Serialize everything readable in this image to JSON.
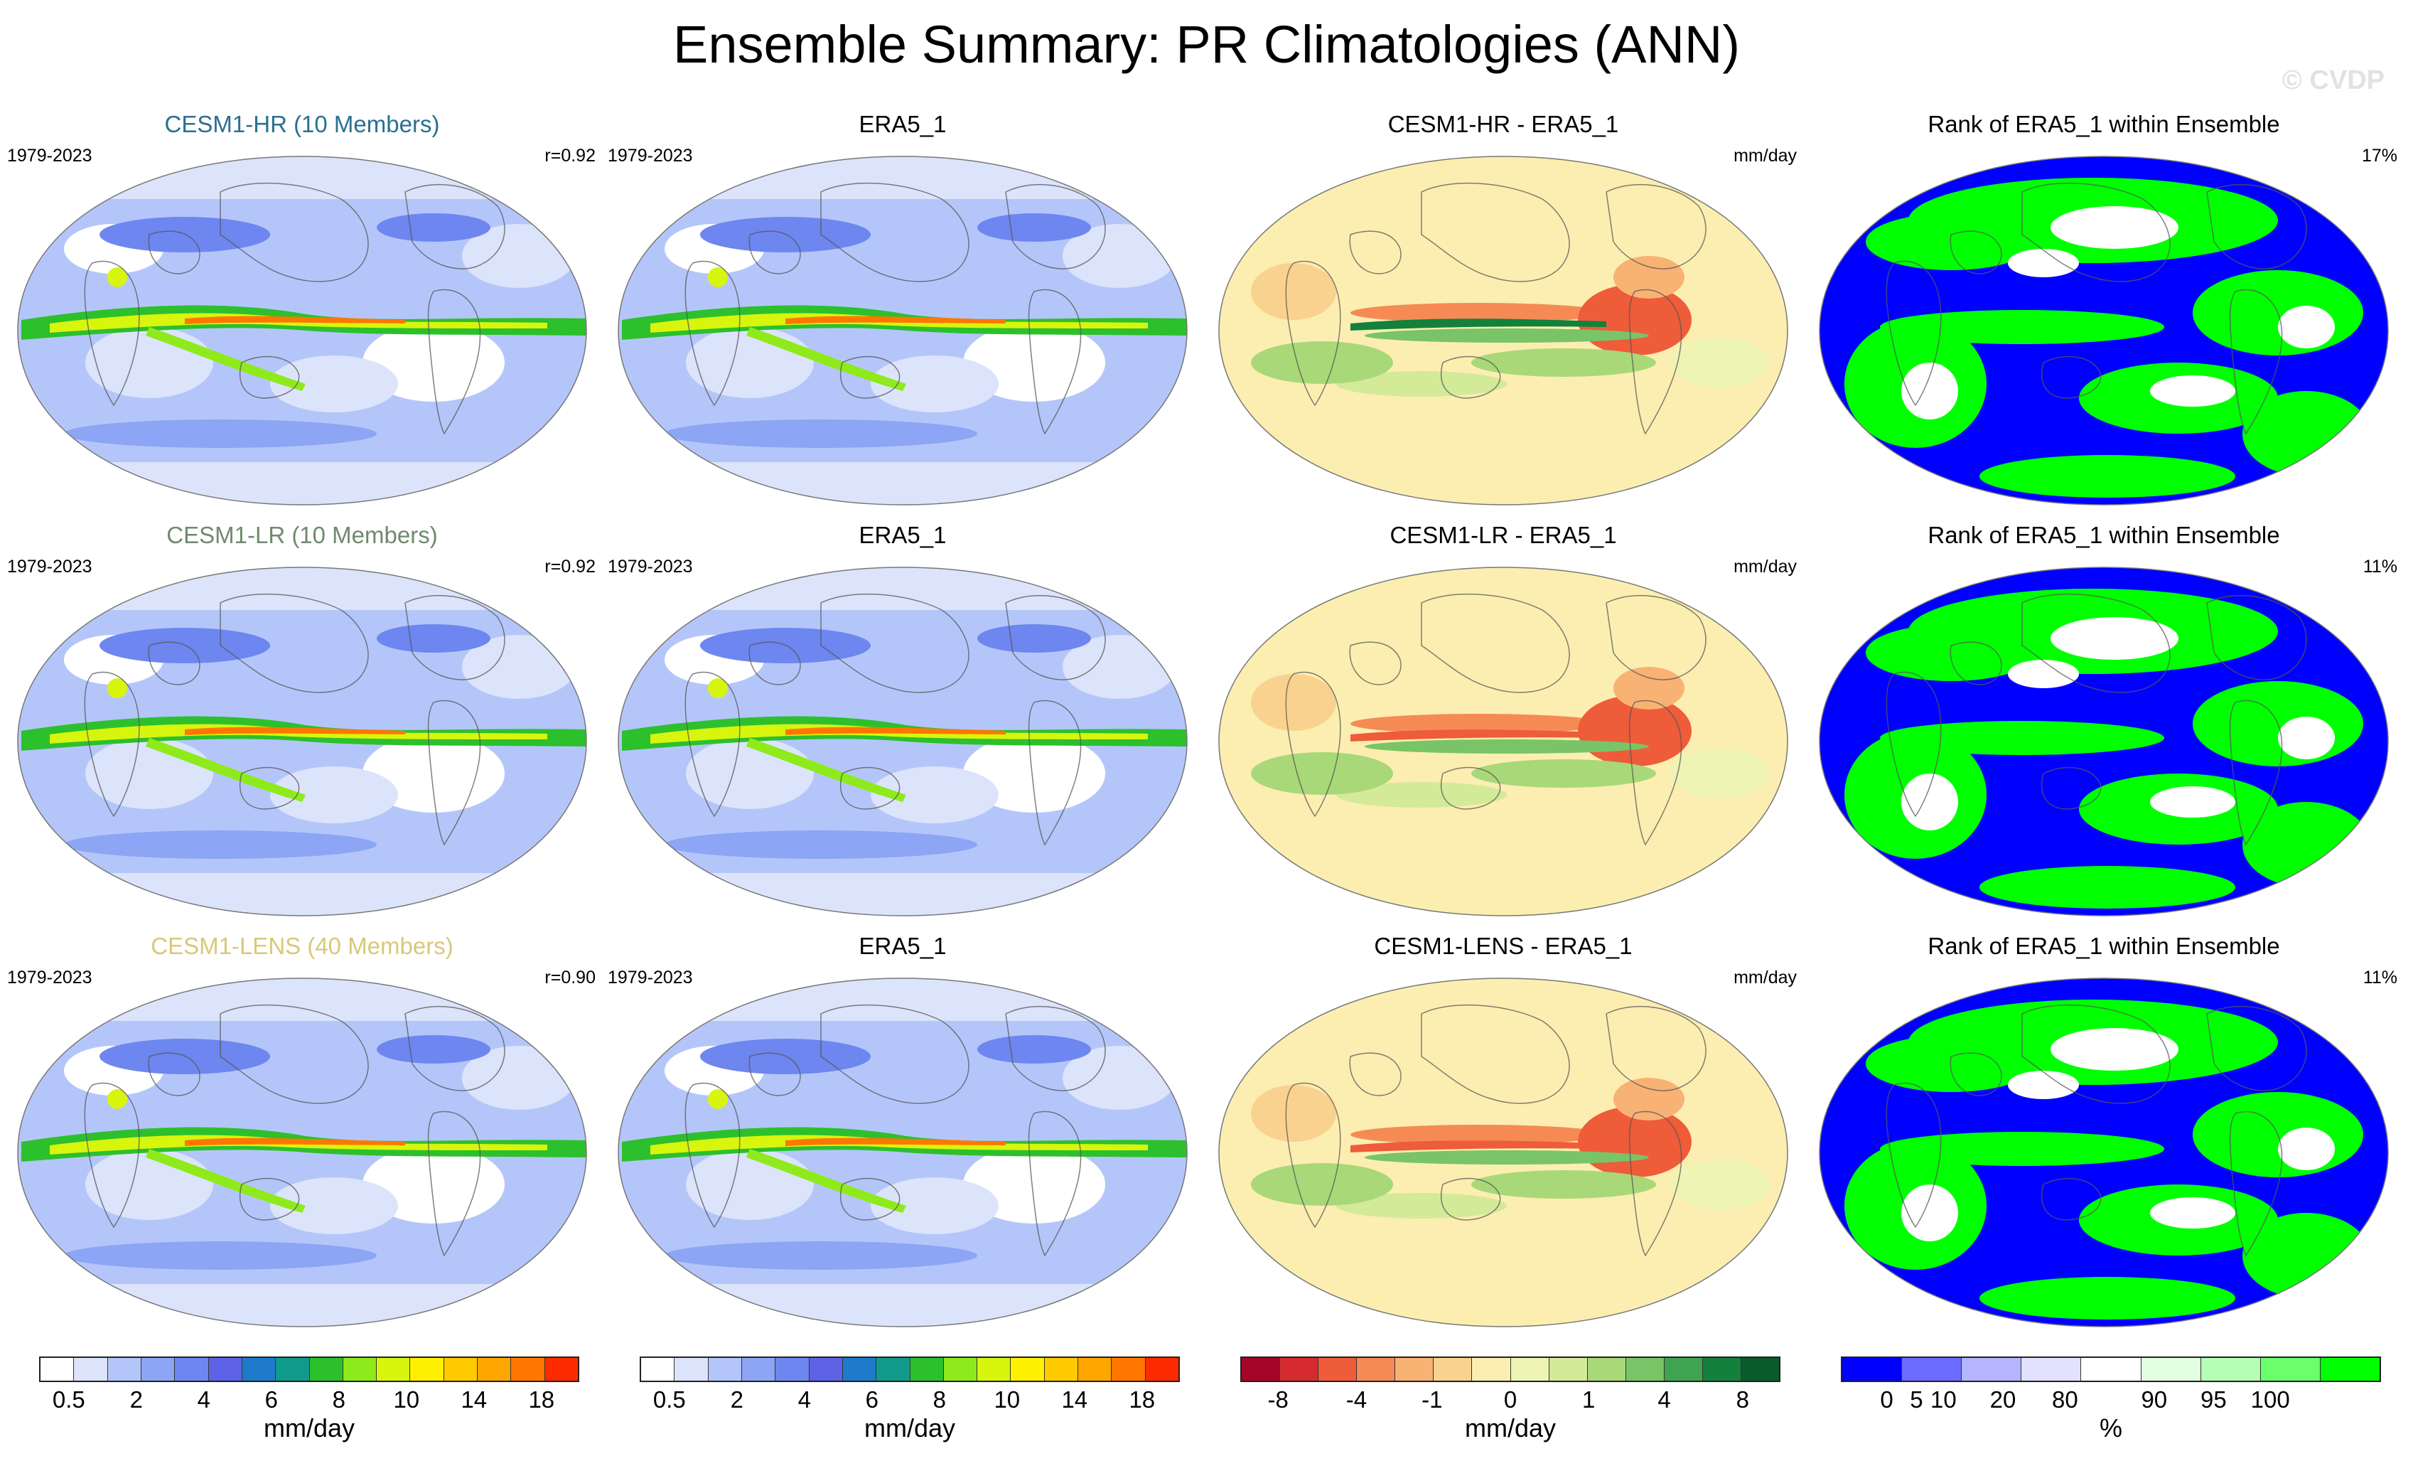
{
  "title": "Ensemble Summary: PR Climatologies (ANN)",
  "watermark": "© CVDP",
  "colors": {
    "title_hr": "#2a7090",
    "title_lr": "#6e8a6e",
    "title_lens": "#d8c878"
  },
  "rows": [
    {
      "model": {
        "title": "CESM1-HR (10 Members)",
        "period": "1979-2023",
        "corr": "r=0.92"
      },
      "obs": {
        "title": "ERA5_1",
        "period": "1979-2023"
      },
      "diff": {
        "title": "CESM1-HR - ERA5_1",
        "unit": "mm/day"
      },
      "rank": {
        "title": "Rank of ERA5_1 within Ensemble",
        "pct": "17%"
      }
    },
    {
      "model": {
        "title": "CESM1-LR (10 Members)",
        "period": "1979-2023",
        "corr": "r=0.92"
      },
      "obs": {
        "title": "ERA5_1",
        "period": "1979-2023"
      },
      "diff": {
        "title": "CESM1-LR - ERA5_1",
        "unit": "mm/day"
      },
      "rank": {
        "title": "Rank of ERA5_1 within Ensemble",
        "pct": "11%"
      }
    },
    {
      "model": {
        "title": "CESM1-LENS (40 Members)",
        "period": "1979-2023",
        "corr": "r=0.90"
      },
      "obs": {
        "title": "ERA5_1",
        "period": "1979-2023"
      },
      "diff": {
        "title": "CESM1-LENS - ERA5_1",
        "unit": "mm/day"
      },
      "rank": {
        "title": "Rank of ERA5_1 within Ensemble",
        "pct": "11%"
      }
    }
  ],
  "colorbars": [
    {
      "unit": "mm/day",
      "colors": [
        "#ffffff",
        "#dce4fb",
        "#b4c6f9",
        "#8ca5f5",
        "#6e86ef",
        "#5d62e6",
        "#1e7acb",
        "#109a8c",
        "#2cc02c",
        "#8fea1c",
        "#d8f50e",
        "#fff100",
        "#ffcb00",
        "#ffa600",
        "#ff7700",
        "#ff2b00"
      ],
      "ticks": [
        "0.5",
        "2",
        "4",
        "6",
        "8",
        "10",
        "14",
        "18"
      ]
    },
    {
      "unit": "mm/day",
      "colors": [
        "#ffffff",
        "#dce4fb",
        "#b4c6f9",
        "#8ca5f5",
        "#6e86ef",
        "#5d62e6",
        "#1e7acb",
        "#109a8c",
        "#2cc02c",
        "#8fea1c",
        "#d8f50e",
        "#fff100",
        "#ffcb00",
        "#ffa600",
        "#ff7700",
        "#ff2b00"
      ],
      "ticks": [
        "0.5",
        "2",
        "4",
        "6",
        "8",
        "10",
        "14",
        "18"
      ]
    },
    {
      "unit": "mm/day",
      "colors": [
        "#a5042a",
        "#d52b2e",
        "#ee5c3a",
        "#f58a55",
        "#f8b274",
        "#fad28f",
        "#fbeeb0",
        "#eef4b4",
        "#d3ea99",
        "#a9d878",
        "#79c466",
        "#3fa450",
        "#13813c",
        "#0a5c2c"
      ],
      "ticks": [
        "-8",
        "-4",
        "-1",
        "0",
        "1",
        "4",
        "8"
      ]
    },
    {
      "unit": "%",
      "colors": [
        "#0000ff",
        "#6b6bff",
        "#b4b4ff",
        "#e2e2ff",
        "#ffffff",
        "#e2ffe2",
        "#b4ffb4",
        "#6bff6b",
        "#00ff00"
      ],
      "ticks": [
        "0",
        "5",
        "10",
        "20",
        "80",
        "90",
        "95",
        "100"
      ]
    }
  ]
}
